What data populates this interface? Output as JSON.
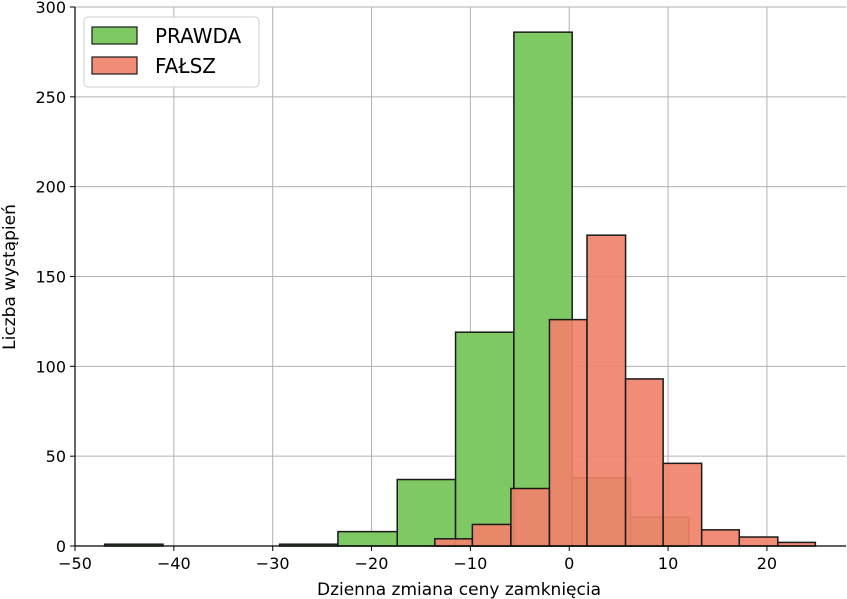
{
  "chart_data": {
    "type": "bar",
    "subtype": "histogram",
    "xlabel": "Dzienna zmiana ceny zamknięcia",
    "ylabel": "Liczba wystąpień",
    "xlim": [
      -50,
      28
    ],
    "ylim": [
      0,
      300
    ],
    "xticks": [
      -50,
      -40,
      -30,
      -20,
      -10,
      0,
      10,
      20
    ],
    "xtick_labels": [
      "−50",
      "−40",
      "−30",
      "−20",
      "−10",
      "0",
      "10",
      "20"
    ],
    "yticks": [
      0,
      50,
      100,
      150,
      200,
      250,
      300
    ],
    "ytick_labels": [
      "0",
      "50",
      "100",
      "150",
      "200",
      "250",
      "300"
    ],
    "grid": true,
    "legend_position": "top-left",
    "series": [
      {
        "name": "PRAWDA",
        "color": "#7fc964",
        "alpha": 1,
        "bins": [
          {
            "x0": -47.0,
            "x1": -41.1,
            "count": 1
          },
          {
            "x0": -41.1,
            "x1": -35.2,
            "count": 0
          },
          {
            "x0": -35.2,
            "x1": -29.3,
            "count": 0
          },
          {
            "x0": -29.3,
            "x1": -23.4,
            "count": 1
          },
          {
            "x0": -23.4,
            "x1": -17.4,
            "count": 8
          },
          {
            "x0": -17.4,
            "x1": -11.5,
            "count": 37
          },
          {
            "x0": -11.5,
            "x1": -5.6,
            "count": 119
          },
          {
            "x0": -5.6,
            "x1": 0.3,
            "count": 286
          },
          {
            "x0": 0.3,
            "x1": 6.2,
            "count": 38
          },
          {
            "x0": 6.2,
            "x1": 12.1,
            "count": 16
          }
        ]
      },
      {
        "name": "FAŁSZ",
        "color": "#f0826a",
        "alpha": 0.92,
        "bins": [
          {
            "x0": -13.6,
            "x1": -9.8,
            "count": 4
          },
          {
            "x0": -9.8,
            "x1": -5.9,
            "count": 12
          },
          {
            "x0": -5.9,
            "x1": -2.0,
            "count": 32
          },
          {
            "x0": -2.0,
            "x1": 1.8,
            "count": 126
          },
          {
            "x0": 1.8,
            "x1": 5.7,
            "count": 173
          },
          {
            "x0": 5.7,
            "x1": 9.5,
            "count": 93
          },
          {
            "x0": 9.5,
            "x1": 13.4,
            "count": 46
          },
          {
            "x0": 13.4,
            "x1": 17.2,
            "count": 9
          },
          {
            "x0": 17.2,
            "x1": 21.1,
            "count": 5
          },
          {
            "x0": 21.1,
            "x1": 24.9,
            "count": 2
          }
        ]
      }
    ]
  }
}
